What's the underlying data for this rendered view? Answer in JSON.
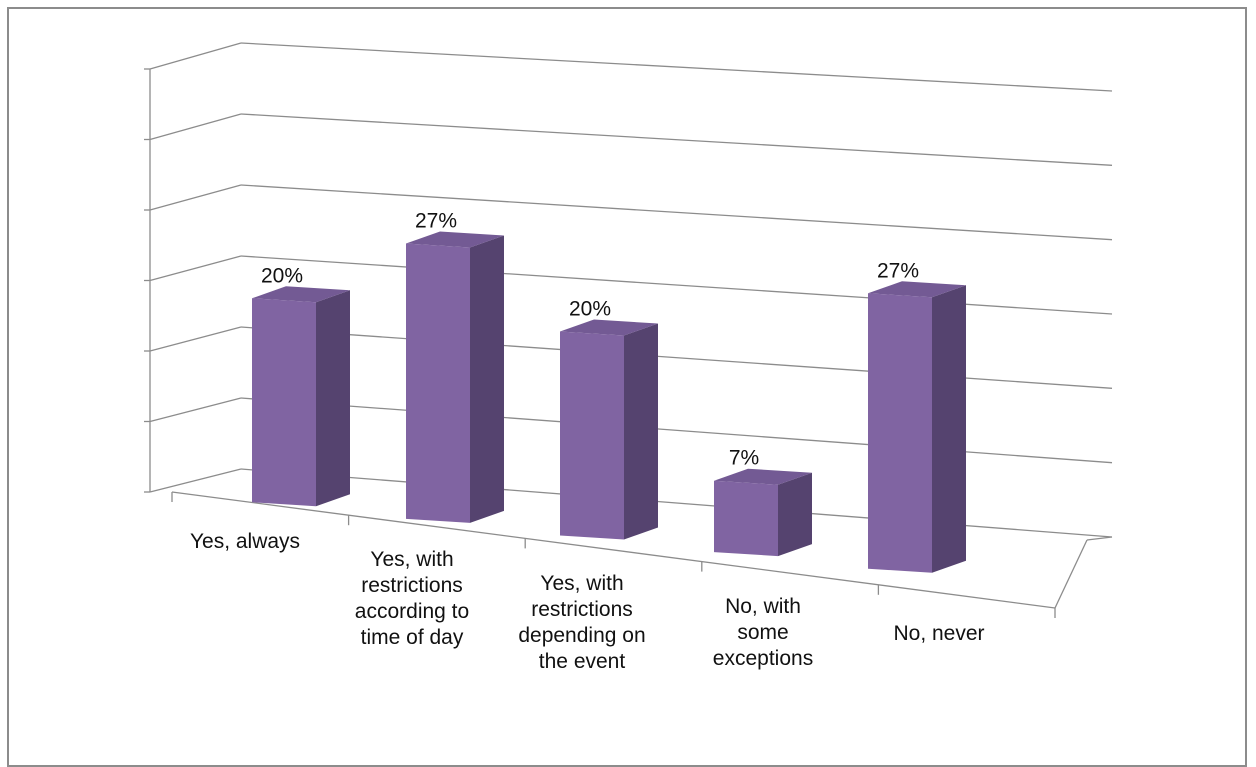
{
  "chart_data": {
    "type": "bar",
    "style": "3d-column",
    "categories": [
      "Yes, always",
      "Yes, with restrictions according to time of day",
      "Yes, with restrictions depending on the event",
      "No, with some exceptions",
      "No, never"
    ],
    "category_labels": [
      "Yes, always",
      "Yes, with\nrestrictions\naccording to\ntime of day",
      "Yes, with\nrestrictions\ndepending on\nthe event",
      "No, with\nsome\nexceptions",
      "No, never"
    ],
    "values": [
      20,
      27,
      20,
      7,
      27
    ],
    "data_labels": [
      "20%",
      "27%",
      "20%",
      "7%",
      "27%"
    ],
    "unit": "%",
    "ylim": [
      0,
      30
    ],
    "gridlines": 6,
    "grid": true,
    "legend": "none",
    "colors": {
      "bar_front": "#8064a2",
      "bar_side": "#55436f",
      "bar_top": "#735a94",
      "grid": "#8c8c8c"
    }
  }
}
